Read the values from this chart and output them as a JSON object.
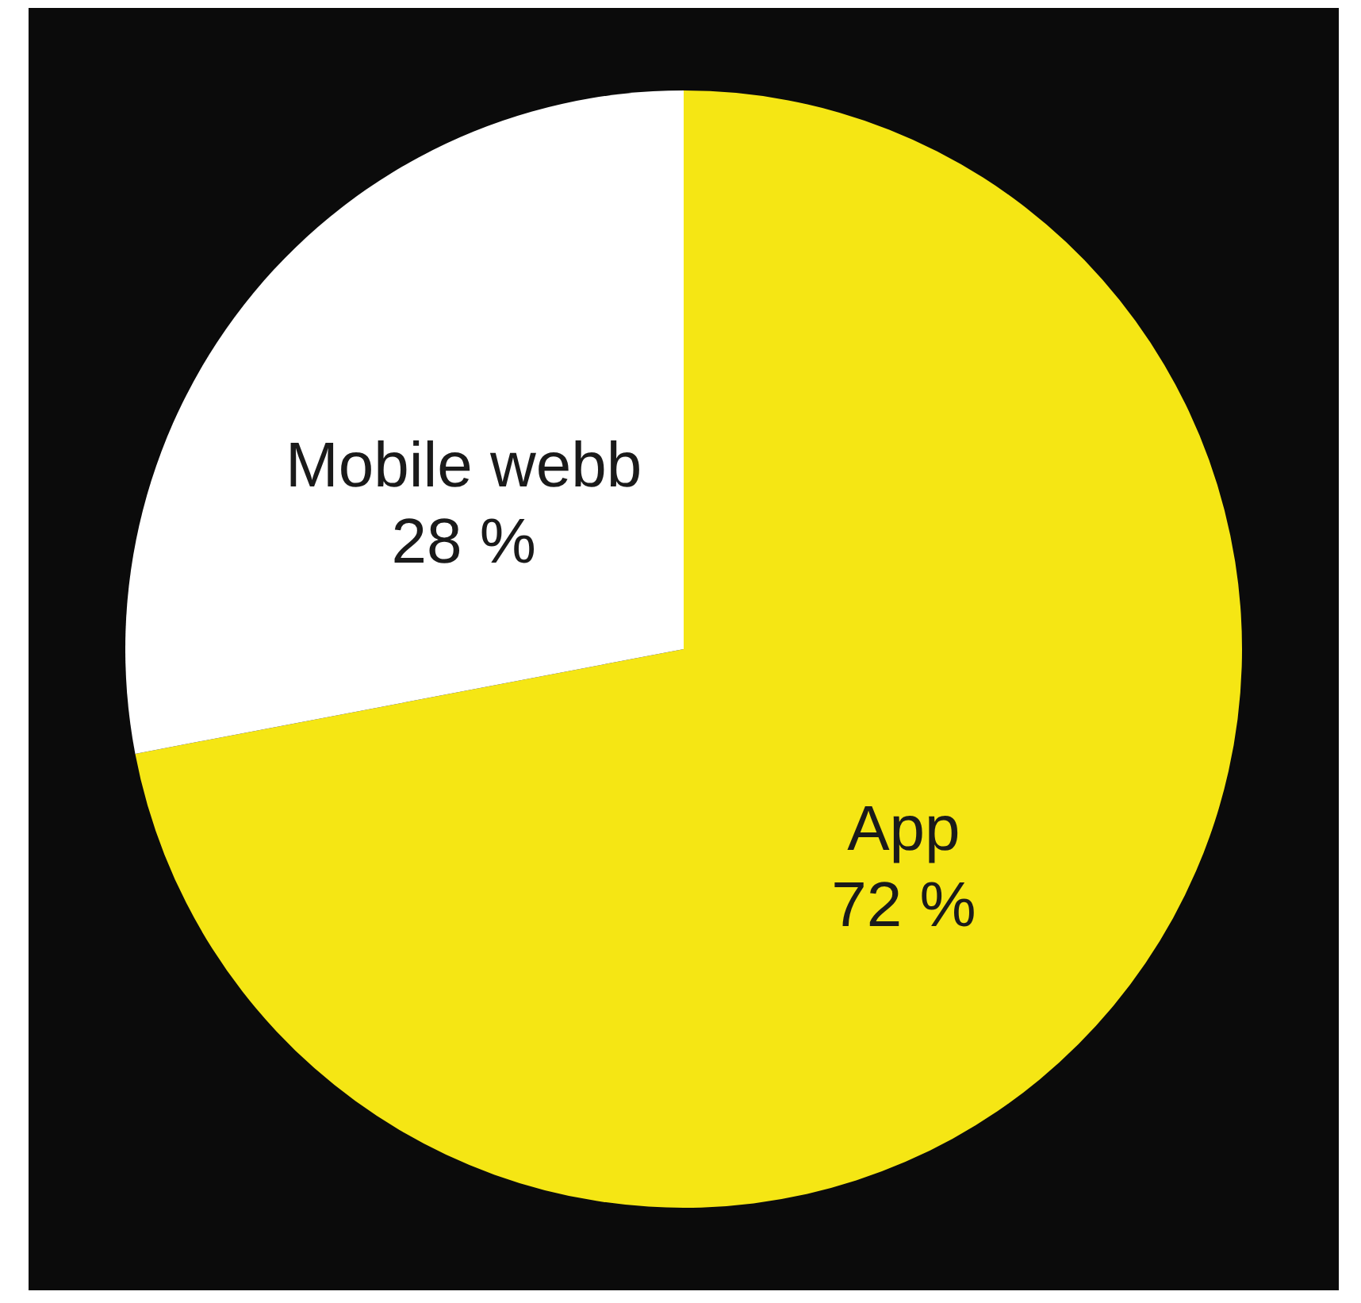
{
  "chart_data": {
    "type": "pie",
    "categories": [
      "App",
      "Mobile webb"
    ],
    "values": [
      72,
      28
    ],
    "colors": [
      "#f5e614",
      "#ffffff"
    ],
    "value_labels": [
      "72 %",
      "28 %"
    ]
  }
}
